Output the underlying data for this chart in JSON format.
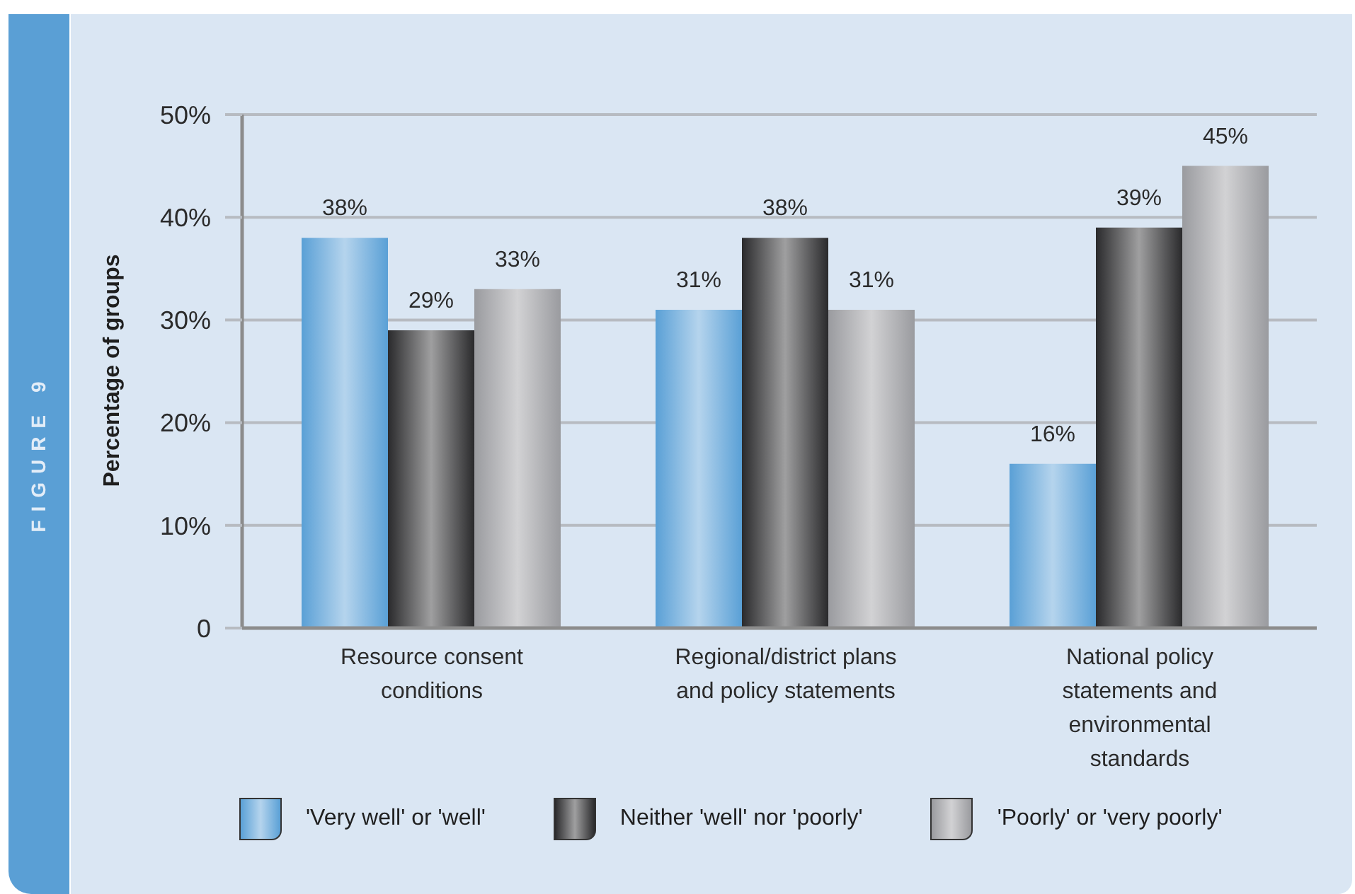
{
  "chart_data": {
    "type": "bar",
    "title": "FIGURE 9",
    "ylabel": "Percentage of groups",
    "categories": [
      "Resource consent conditions",
      "Regional/district plans and policy statements",
      "National policy statements and environmental standards"
    ],
    "series": [
      {
        "name": "'Very well' or 'well'",
        "color": "#5aa0d6",
        "values": [
          38,
          31,
          16
        ],
        "value_labels": [
          "38%",
          "31%",
          "16%"
        ]
      },
      {
        "name": "Neither 'well' nor 'poorly'",
        "color": "#2a2a2c",
        "values": [
          29,
          38,
          39
        ],
        "value_labels": [
          "29%",
          "38%",
          "39%"
        ]
      },
      {
        "name": "'Poorly' or 'very poorly'",
        "color": "#9a9b9f",
        "values": [
          33,
          31,
          45
        ],
        "value_labels": [
          "33%",
          "31%",
          "45%"
        ]
      }
    ],
    "ylim": [
      0,
      50
    ],
    "yticks": [
      0,
      {
        "value": 10,
        "label": "10%"
      },
      {
        "value": 20,
        "label": "20%"
      },
      {
        "value": 30,
        "label": "30%"
      },
      {
        "value": 40,
        "label": "40%"
      },
      {
        "value": 50,
        "label": "50%"
      }
    ],
    "grid": "y",
    "legend": "bottom"
  }
}
